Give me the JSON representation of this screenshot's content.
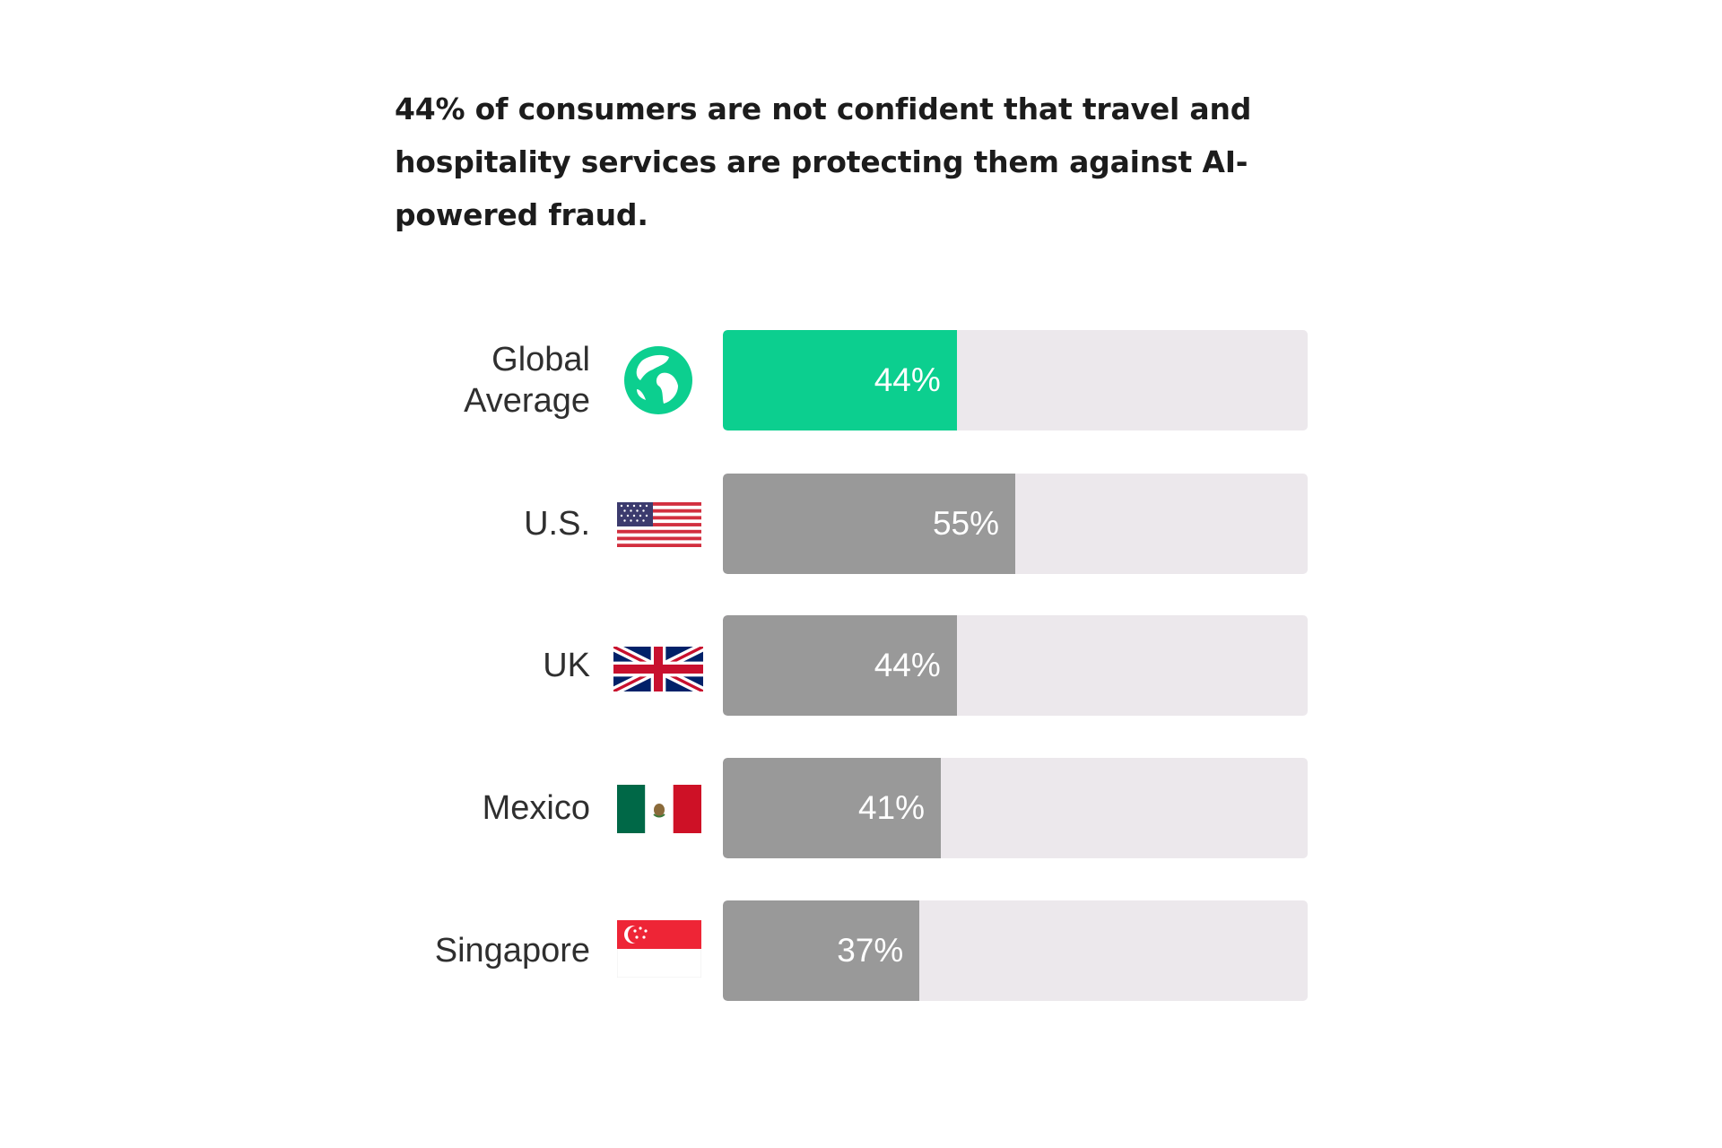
{
  "chart_data": {
    "type": "bar",
    "orientation": "horizontal",
    "title": "44% of consumers are not confident that travel and hospitality services are protecting them against AI-powered fraud.",
    "categories": [
      "Global\nAverage",
      "U.S.",
      "UK",
      "Mexico",
      "Singapore"
    ],
    "values": [
      44,
      55,
      44,
      41,
      37
    ],
    "value_labels": [
      "44%",
      "55%",
      "44%",
      "41%",
      "37%"
    ],
    "icons": [
      "globe-icon",
      "us-flag-icon",
      "uk-flag-icon",
      "mexico-flag-icon",
      "singapore-flag-icon"
    ],
    "xlim": [
      0,
      100
    ],
    "grid": false,
    "colors": {
      "highlight": "#0ccf8f",
      "bar": "#999999",
      "track": "#ece8ec",
      "value_text": "#ffffff"
    },
    "highlight_index": 0
  }
}
